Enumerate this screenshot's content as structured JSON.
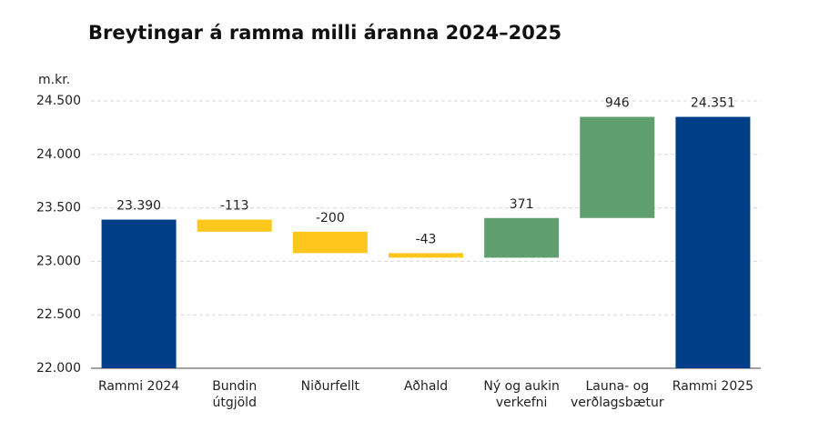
{
  "chart_data": {
    "type": "waterfall",
    "title": "Breytingar á ramma milli áranna 2024–2025",
    "y_label": "m.kr.",
    "categories": [
      "Rammi 2024",
      "Bundin\nútgjöld",
      "Niðurfellt",
      "Aðhald",
      "Ný og aukin\nverkefni",
      "Launa- og\nverðlagsbætur",
      "Rammi 2025"
    ],
    "values": [
      23390,
      -113,
      -200,
      -43,
      371,
      946,
      24351
    ],
    "value_labels": [
      "23.390",
      "-113",
      "-200",
      "-43",
      "371",
      "946",
      "24.351"
    ],
    "is_total": [
      true,
      false,
      false,
      false,
      false,
      false,
      true
    ],
    "colors": [
      "#003f87",
      "#ffc61e",
      "#ffc61e",
      "#ffc61e",
      "#5f9e6e",
      "#5f9e6e",
      "#003f87"
    ],
    "ylim": [
      22000,
      24500
    ],
    "yticks": [
      {
        "value": 22000,
        "label": "22.000"
      },
      {
        "value": 22500,
        "label": "22.500"
      },
      {
        "value": 23000,
        "label": "23.000"
      },
      {
        "value": 23500,
        "label": "23.500"
      },
      {
        "value": 24000,
        "label": "24.000"
      },
      {
        "value": 24500,
        "label": "24.500"
      }
    ],
    "grid": true
  }
}
